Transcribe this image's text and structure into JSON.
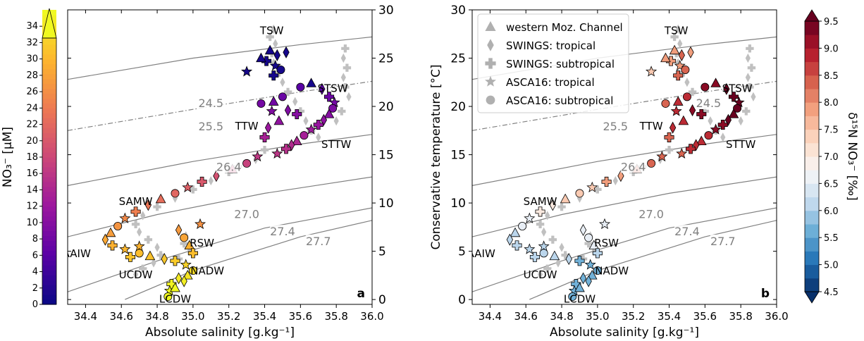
{
  "chart_data": [
    {
      "panel": "a",
      "type": "scatter",
      "xlabel": "Absolute salinity [g.kg⁻¹]",
      "ylabel": "",
      "y2label": "",
      "xlim": [
        34.3,
        36.0
      ],
      "ylim": [
        -0.5,
        30
      ],
      "xticks": [
        "34.4",
        "34.6",
        "34.8",
        "35.0",
        "35.2",
        "35.4",
        "35.6",
        "35.8",
        "36.0"
      ],
      "yticks": [
        "0",
        "5",
        "10",
        "15",
        "20",
        "25",
        "30"
      ],
      "colorbar": {
        "label": "NO₃⁻ [μM]",
        "position": "left",
        "range": [
          0,
          36
        ],
        "ticks": [
          "0",
          "2",
          "4",
          "6",
          "8",
          "10",
          "12",
          "14",
          "16",
          "18",
          "20",
          "22",
          "24",
          "26",
          "28",
          "30",
          "32",
          "34"
        ],
        "colormap": [
          "#0d0887",
          "#5c01a6",
          "#9c179e",
          "#cc4778",
          "#ed7953",
          "#fdb42f",
          "#f0f921"
        ]
      },
      "density_labels": [
        {
          "text": "24.5",
          "s": 35.1,
          "t": 20.3
        },
        {
          "text": "25.5",
          "s": 35.1,
          "t": 17.9
        },
        {
          "text": "26.4",
          "s": 35.2,
          "t": 13.7
        },
        {
          "text": "27.0",
          "s": 35.3,
          "t": 8.8
        },
        {
          "text": "27.4",
          "s": 35.5,
          "t": 7.0
        },
        {
          "text": "27.7",
          "s": 35.7,
          "t": 6.0
        }
      ],
      "water_masses": [
        {
          "text": "TSW",
          "s": 35.44,
          "t": 27.5
        },
        {
          "text": "STSW",
          "s": 35.78,
          "t": 21.5
        },
        {
          "text": "TTW",
          "s": 35.3,
          "t": 17.6
        },
        {
          "text": "STTW",
          "s": 35.8,
          "t": 15.7
        },
        {
          "text": "SAMW",
          "s": 34.68,
          "t": 9.8
        },
        {
          "text": "RSW",
          "s": 35.05,
          "t": 5.5
        },
        {
          "text": "AAIW",
          "s": 34.35,
          "t": 4.4
        },
        {
          "text": "UCDW",
          "s": 34.68,
          "t": 2.2
        },
        {
          "text": "NADW",
          "s": 35.08,
          "t": 2.6
        },
        {
          "text": "LCDW",
          "s": 34.9,
          "t": -0.3
        }
      ],
      "panel_label": "a"
    },
    {
      "panel": "b",
      "type": "scatter",
      "xlabel": "Absolute salinity [g.kg⁻¹]",
      "ylabel": "Conservative temperature [°C]",
      "xlim": [
        34.3,
        36.0
      ],
      "ylim": [
        -0.5,
        30
      ],
      "xticks": [
        "34.4",
        "34.6",
        "34.8",
        "35.0",
        "35.2",
        "35.4",
        "35.6",
        "35.8",
        "36.0"
      ],
      "yticks": [
        "0",
        "5",
        "10",
        "15",
        "20",
        "25",
        "30"
      ],
      "colorbar": {
        "label": "δ¹⁵N NO₃⁻ [‰]",
        "position": "right",
        "range": [
          4.5,
          9.5
        ],
        "ticks": [
          "4.5",
          "5.0",
          "5.5",
          "6.0",
          "6.5",
          "7.0",
          "7.5",
          "8.0",
          "8.5",
          "9.0",
          "9.5"
        ],
        "colormap": [
          "#08306b",
          "#2171b5",
          "#6baed6",
          "#c6dbef",
          "#f7f7f7",
          "#fddbc7",
          "#f4a582",
          "#d6604d",
          "#b2182b",
          "#67001f"
        ]
      },
      "legend": {
        "placement": "top-left",
        "entries": [
          {
            "label": "western Moz. Channel",
            "marker": "triangle"
          },
          {
            "label": "SWINGS: tropical",
            "marker": "diamond"
          },
          {
            "label": "SWINGS: subtropical",
            "marker": "plus"
          },
          {
            "label": "ASCA16: tropical",
            "marker": "star"
          },
          {
            "label": "ASCA16: subtropical",
            "marker": "circle"
          }
        ]
      },
      "density_labels": [
        {
          "text": "24.5",
          "s": 35.62,
          "t": 20.3
        },
        {
          "text": "25.5",
          "s": 35.1,
          "t": 17.9
        },
        {
          "text": "26.4",
          "s": 35.2,
          "t": 13.7
        },
        {
          "text": "27.0",
          "s": 35.3,
          "t": 8.8
        },
        {
          "text": "27.4",
          "s": 35.5,
          "t": 7.0
        },
        {
          "text": "27.7",
          "s": 35.7,
          "t": 6.0
        }
      ],
      "water_masses": [
        {
          "text": "TSW",
          "s": 35.44,
          "t": 27.5
        },
        {
          "text": "STSW",
          "s": 35.78,
          "t": 21.5
        },
        {
          "text": "TTW",
          "s": 35.3,
          "t": 17.6
        },
        {
          "text": "STTW",
          "s": 35.8,
          "t": 15.7
        },
        {
          "text": "SAMW",
          "s": 34.68,
          "t": 9.8
        },
        {
          "text": "RSW",
          "s": 35.05,
          "t": 5.5
        },
        {
          "text": "AAIW",
          "s": 34.35,
          "t": 4.4
        },
        {
          "text": "UCDW",
          "s": 34.68,
          "t": 2.2
        },
        {
          "text": "NADW",
          "s": 35.08,
          "t": 2.6
        },
        {
          "text": "LCDW",
          "s": 34.9,
          "t": -0.3
        }
      ],
      "panel_label": "b"
    }
  ],
  "isopycnals": [
    {
      "kind": "solid",
      "pts": [
        [
          34.3,
          22.8
        ],
        [
          35.0,
          25.0
        ],
        [
          35.6,
          26.4
        ],
        [
          36.0,
          27.2
        ]
      ]
    },
    {
      "kind": "dashdot",
      "pts": [
        [
          34.3,
          17.5
        ],
        [
          35.0,
          19.7
        ],
        [
          35.6,
          21.5
        ],
        [
          36.0,
          22.6
        ]
      ]
    },
    {
      "kind": "solid",
      "pts": [
        [
          34.3,
          11.8
        ],
        [
          35.0,
          14.3
        ],
        [
          35.6,
          16.1
        ],
        [
          36.0,
          17.1
        ]
      ]
    },
    {
      "kind": "solid",
      "pts": [
        [
          34.3,
          6.5
        ],
        [
          34.8,
          8.8
        ],
        [
          35.4,
          11.0
        ],
        [
          36.0,
          12.7
        ]
      ]
    },
    {
      "kind": "solid",
      "pts": [
        [
          34.3,
          0.8
        ],
        [
          34.8,
          4.0
        ],
        [
          35.4,
          7.4
        ],
        [
          36.0,
          9.5
        ]
      ]
    },
    {
      "kind": "solid",
      "pts": [
        [
          34.62,
          0.0
        ],
        [
          35.0,
          3.0
        ],
        [
          35.6,
          6.5
        ],
        [
          36.0,
          8.2
        ]
      ]
    }
  ],
  "profile_path": [
    [
      34.87,
      0.1
    ],
    [
      34.88,
      0.9
    ],
    [
      34.9,
      1.8
    ],
    [
      34.95,
      2.2
    ],
    [
      35.0,
      2.5
    ],
    [
      34.95,
      3.0
    ],
    [
      34.88,
      3.6
    ],
    [
      34.8,
      3.9
    ],
    [
      34.72,
      4.2
    ],
    [
      34.65,
      4.6
    ],
    [
      34.58,
      5.1
    ],
    [
      34.53,
      5.6
    ],
    [
      34.5,
      6.3
    ],
    [
      34.55,
      7.0
    ],
    [
      34.62,
      7.8
    ],
    [
      34.7,
      8.6
    ],
    [
      34.8,
      9.4
    ],
    [
      34.92,
      10.2
    ],
    [
      35.02,
      11.0
    ],
    [
      35.12,
      11.8
    ],
    [
      35.22,
      12.7
    ],
    [
      35.3,
      13.5
    ],
    [
      35.38,
      14.5
    ],
    [
      35.45,
      15.5
    ],
    [
      35.5,
      16.5
    ],
    [
      35.55,
      17.4
    ],
    [
      35.62,
      18.2
    ],
    [
      35.7,
      18.8
    ],
    [
      35.76,
      19.5
    ],
    [
      35.78,
      20.5
    ],
    [
      35.74,
      21.3
    ],
    [
      35.65,
      21.8
    ],
    [
      35.55,
      21.6
    ],
    [
      35.48,
      21.0
    ],
    [
      35.42,
      22.5
    ],
    [
      35.44,
      24.0
    ],
    [
      35.44,
      25.5
    ]
  ],
  "grey_points": [
    [
      35.45,
      28.0
    ],
    [
      35.43,
      27.2
    ],
    [
      35.46,
      26.5
    ],
    [
      35.44,
      25.5
    ],
    [
      35.45,
      24.5
    ],
    [
      35.48,
      23.5
    ],
    [
      35.5,
      22.5
    ],
    [
      35.53,
      21.5
    ],
    [
      35.57,
      20.5
    ],
    [
      35.6,
      19.5
    ],
    [
      35.63,
      18.5
    ],
    [
      35.66,
      17.5
    ],
    [
      35.7,
      16.8
    ],
    [
      35.85,
      26.0
    ],
    [
      35.84,
      25.0
    ],
    [
      35.86,
      24.0
    ],
    [
      35.84,
      23.0
    ],
    [
      35.85,
      22.0
    ],
    [
      35.87,
      21.0
    ],
    [
      35.83,
      19.5
    ],
    [
      35.8,
      18.5
    ],
    [
      35.2,
      13.2
    ],
    [
      35.1,
      12.3
    ],
    [
      35.0,
      11.4
    ],
    [
      34.9,
      10.5
    ],
    [
      34.8,
      9.6
    ],
    [
      34.72,
      8.7
    ],
    [
      34.68,
      7.8
    ],
    [
      34.7,
      7.0
    ],
    [
      34.75,
      6.2
    ],
    [
      34.8,
      5.4
    ],
    [
      34.82,
      4.6
    ],
    [
      34.78,
      3.8
    ],
    [
      34.72,
      3.2
    ],
    [
      34.68,
      2.6
    ],
    [
      34.95,
      5.8
    ],
    [
      34.98,
      5.0
    ],
    [
      34.92,
      4.2
    ],
    [
      34.96,
      6.6
    ],
    [
      35.4,
      15.5
    ],
    [
      35.35,
      14.5
    ],
    [
      35.25,
      13.8
    ]
  ],
  "series_points": [
    [
      35.43,
      25.8,
      2
    ],
    [
      35.47,
      25.3,
      3
    ],
    [
      35.41,
      24.7,
      2
    ],
    [
      35.46,
      24.2,
      2
    ],
    [
      35.49,
      23.8,
      3
    ],
    [
      35.38,
      25.0,
      2
    ],
    [
      35.52,
      25.6,
      2
    ],
    [
      35.45,
      23.2,
      3
    ],
    [
      35.3,
      23.6,
      1
    ],
    [
      35.6,
      22.0,
      5
    ],
    [
      35.66,
      22.4,
      5
    ],
    [
      35.72,
      21.8,
      6
    ],
    [
      35.76,
      21.0,
      6
    ],
    [
      35.79,
      20.4,
      6
    ],
    [
      35.78,
      19.8,
      6
    ],
    [
      35.76,
      19.2,
      6
    ],
    [
      35.73,
      18.6,
      6
    ],
    [
      35.7,
      18.1,
      5
    ],
    [
      35.66,
      17.6,
      5
    ],
    [
      35.62,
      17.0,
      4
    ],
    [
      35.58,
      16.4,
      4
    ],
    [
      35.55,
      16.0,
      4
    ],
    [
      35.52,
      15.6,
      4
    ],
    [
      35.47,
      15.1,
      3
    ],
    [
      35.5,
      21.0,
      4
    ],
    [
      35.45,
      20.5,
      4
    ],
    [
      35.53,
      19.6,
      5
    ],
    [
      35.58,
      19.2,
      5
    ],
    [
      35.44,
      19.5,
      4
    ],
    [
      35.38,
      20.3,
      3
    ],
    [
      35.48,
      18.5,
      4
    ],
    [
      35.42,
      17.8,
      4
    ],
    [
      35.4,
      16.8,
      3
    ],
    [
      35.36,
      14.8,
      3
    ],
    [
      35.3,
      14.1,
      3
    ],
    [
      35.22,
      13.5,
      3
    ],
    [
      35.13,
      12.8,
      2
    ],
    [
      35.05,
      12.2,
      2
    ],
    [
      34.97,
      11.6,
      1
    ],
    [
      34.9,
      11.0,
      1
    ],
    [
      34.82,
      10.4,
      1
    ],
    [
      34.75,
      9.8,
      0
    ],
    [
      34.68,
      9.1,
      0
    ],
    [
      34.62,
      8.4,
      -1
    ],
    [
      34.58,
      7.6,
      -1
    ],
    [
      34.54,
      6.9,
      -2
    ],
    [
      34.51,
      6.2,
      -2
    ],
    [
      34.55,
      5.6,
      -2
    ],
    [
      34.62,
      5.2,
      -2
    ],
    [
      34.7,
      4.8,
      -2
    ],
    [
      34.76,
      4.5,
      -2
    ],
    [
      34.84,
      4.2,
      -2
    ],
    [
      34.9,
      4.0,
      -3
    ],
    [
      34.96,
      3.6,
      -3
    ],
    [
      35.0,
      3.0,
      -3
    ],
    [
      34.97,
      2.5,
      -3
    ],
    [
      34.92,
      2.2,
      -3
    ],
    [
      34.88,
      1.6,
      -3
    ],
    [
      34.87,
      0.9,
      -3
    ],
    [
      34.86,
      0.3,
      -3
    ],
    [
      34.9,
      1.2,
      -3
    ],
    [
      34.95,
      1.9,
      -3
    ],
    [
      34.65,
      4.4,
      -2
    ],
    [
      34.7,
      5.5,
      -2
    ],
    [
      34.95,
      6.4,
      -1
    ],
    [
      34.98,
      5.6,
      -1
    ],
    [
      34.92,
      7.2,
      -1
    ],
    [
      35.0,
      4.8,
      -2
    ],
    [
      35.04,
      7.8,
      -1
    ]
  ]
}
